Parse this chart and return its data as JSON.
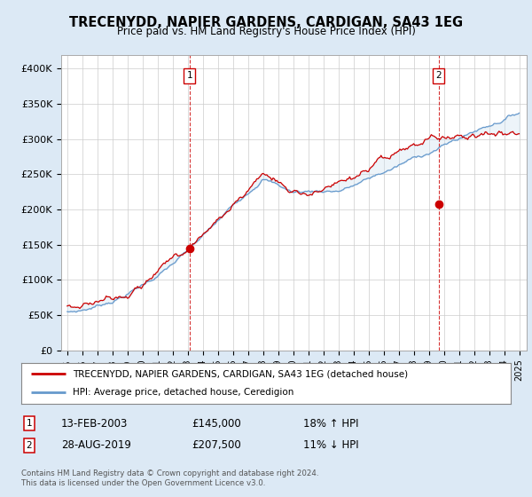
{
  "title": "TRECENYDD, NAPIER GARDENS, CARDIGAN, SA43 1EG",
  "subtitle": "Price paid vs. HM Land Registry's House Price Index (HPI)",
  "ylim": [
    0,
    420000
  ],
  "yticks": [
    0,
    50000,
    100000,
    150000,
    200000,
    250000,
    300000,
    350000,
    400000
  ],
  "ytick_labels": [
    "£0",
    "£50K",
    "£100K",
    "£150K",
    "£200K",
    "£250K",
    "£300K",
    "£350K",
    "£400K"
  ],
  "sale1_price": 145000,
  "sale1_x": 2003.12,
  "sale1_date_str": "13-FEB-2003",
  "sale1_hpi_pct": "18% ↑ HPI",
  "sale2_price": 207500,
  "sale2_x": 2019.65,
  "sale2_date_str": "28-AUG-2019",
  "sale2_hpi_pct": "11% ↓ HPI",
  "legend_red_label": "TRECENYDD, NAPIER GARDENS, CARDIGAN, SA43 1EG (detached house)",
  "legend_blue_label": "HPI: Average price, detached house, Ceredigion",
  "footer": "Contains HM Land Registry data © Crown copyright and database right 2024.\nThis data is licensed under the Open Government Licence v3.0.",
  "red_color": "#cc0000",
  "blue_color": "#6699cc",
  "fill_color": "#cce0f0",
  "background_color": "#dce9f5",
  "plot_bg_color": "#ffffff",
  "grid_color": "#cccccc"
}
